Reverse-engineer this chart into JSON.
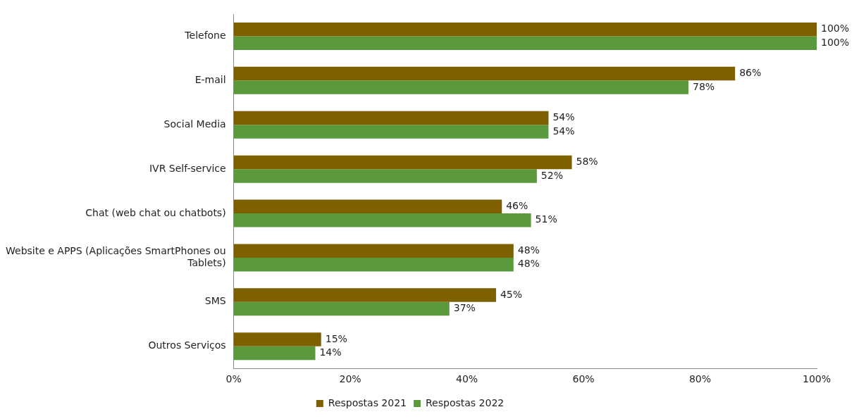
{
  "chart_data": {
    "type": "bar",
    "orientation": "horizontal",
    "categories": [
      "Telefone",
      "E-mail",
      "Social Media",
      "IVR Self-service",
      "Chat (web chat ou chatbots)",
      "Website e APPS (Aplicações SmartPhones ou Tablets)",
      "SMS",
      "Outros Serviços"
    ],
    "series": [
      {
        "name": "Respostas 2021",
        "color": "#7f6000",
        "values": [
          100,
          86,
          54,
          58,
          46,
          48,
          45,
          15
        ],
        "value_labels": [
          "100%",
          "86%",
          "54%",
          "58%",
          "46%",
          "48%",
          "45%",
          "15%"
        ]
      },
      {
        "name": "Respostas 2022",
        "color": "#5b9a3c",
        "values": [
          100,
          78,
          54,
          52,
          51,
          48,
          37,
          14
        ],
        "value_labels": [
          "100%",
          "78%",
          "54%",
          "52%",
          "51%",
          "48%",
          "37%",
          "14%"
        ]
      }
    ],
    "xlim": [
      0,
      100
    ],
    "xticks": [
      {
        "value": 0,
        "label": "0%"
      },
      {
        "value": 20,
        "label": "20%"
      },
      {
        "value": 40,
        "label": "40%"
      },
      {
        "value": 60,
        "label": "60%"
      },
      {
        "value": 80,
        "label": "80%"
      },
      {
        "value": 100,
        "label": "100%"
      }
    ],
    "grid": false,
    "legend": "bottom"
  }
}
